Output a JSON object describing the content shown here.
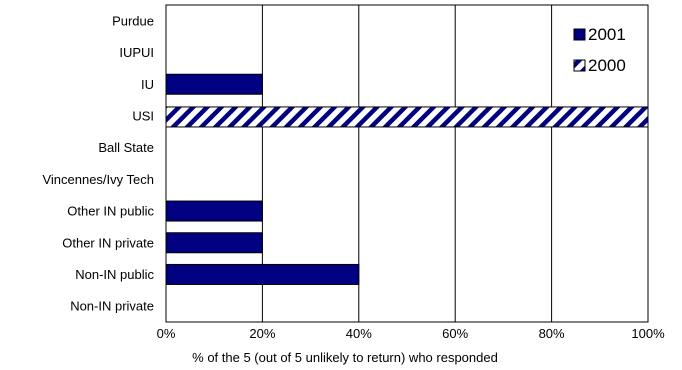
{
  "chart_data": {
    "type": "bar",
    "orientation": "horizontal",
    "categories": [
      "Purdue",
      "IUPUI",
      "IU",
      "USI",
      "Ball State",
      "Vincennes/Ivy Tech",
      "Other IN public",
      "Other IN private",
      "Non-IN public",
      "Non-IN private"
    ],
    "series": [
      {
        "name": "2001",
        "values": [
          0,
          0,
          20,
          0,
          0,
          0,
          20,
          20,
          40,
          0
        ],
        "color": "#000080",
        "pattern": "solid"
      },
      {
        "name": "2000",
        "values": [
          0,
          0,
          0,
          100,
          0,
          0,
          0,
          0,
          0,
          0
        ],
        "color": "#000080",
        "pattern": "diagonal-stripes"
      }
    ],
    "xlabel": "% of the 5 (out of 5 unlikely to return) who responded",
    "ylabel": "",
    "title": "",
    "xlim": [
      0,
      100
    ],
    "xticks": [
      "0%",
      "20%",
      "40%",
      "60%",
      "80%",
      "100%"
    ],
    "grid": "vertical",
    "legend_position": "top-right"
  }
}
